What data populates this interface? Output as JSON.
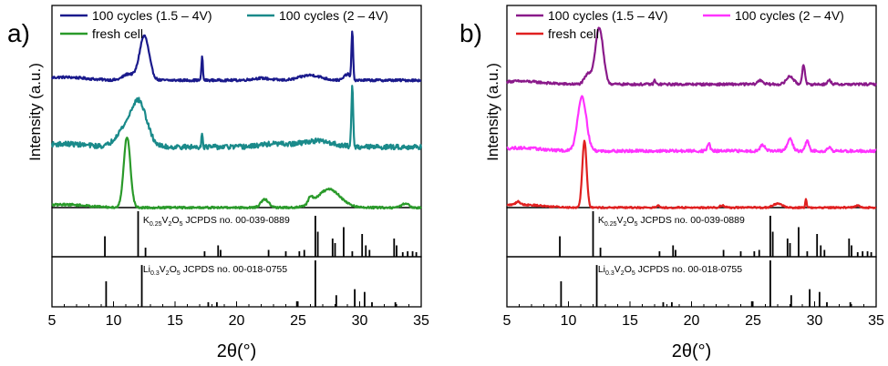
{
  "chart_data": [
    {
      "type": "line",
      "panel_label": "a)",
      "xlabel": "2θ(°)",
      "ylabel": "Intensity (a.u.)",
      "xlim": [
        5,
        35
      ],
      "x_ticks": [
        5,
        10,
        15,
        20,
        25,
        30,
        35
      ],
      "legend": {
        "position": "top",
        "entries": [
          {
            "name": "100 cycles (1.5 – 4V)",
            "color": "#1a1a8c"
          },
          {
            "name": "100 cycles (2 – 4V)",
            "color": "#1a8a8a"
          },
          {
            "name": "fresh cell",
            "color": "#2a9a2a"
          }
        ]
      },
      "series": [
        {
          "name": "100 cycles (1.5 – 4V)",
          "color": "#1a1a8c",
          "offset": 0.88,
          "base": 0.0,
          "noise": 0.006,
          "peaks": [
            [
              12.5,
              0.22,
              0.55
            ],
            [
              11.2,
              0.03,
              0.6
            ],
            [
              17.2,
              0.12,
              0.08
            ],
            [
              29.4,
              0.24,
              0.09
            ],
            [
              29.0,
              0.03,
              0.35
            ],
            [
              26.0,
              0.025,
              1.2
            ],
            [
              22.0,
              0.01,
              1.0
            ]
          ]
        },
        {
          "name": "100 cycles (2 – 4V)",
          "color": "#1a8a8a",
          "offset": 0.55,
          "base": 0.0,
          "noise": 0.012,
          "peaks": [
            [
              12.0,
              0.23,
              0.95
            ],
            [
              10.6,
              0.06,
              0.8
            ],
            [
              17.2,
              0.07,
              0.08
            ],
            [
              29.4,
              0.3,
              0.1
            ],
            [
              26.5,
              0.03,
              1.8
            ],
            [
              23.0,
              0.015,
              1.5
            ]
          ]
        },
        {
          "name": "fresh cell",
          "color": "#2a9a2a",
          "offset": 0.25,
          "base": 0.0,
          "noise": 0.005,
          "peaks": [
            [
              11.1,
              0.35,
              0.38
            ],
            [
              22.3,
              0.04,
              0.45
            ],
            [
              26.0,
              0.035,
              0.25
            ],
            [
              27.5,
              0.09,
              1.3
            ],
            [
              33.7,
              0.02,
              0.4
            ]
          ]
        }
      ],
      "references": [
        {
          "label_parts": [
            [
              "K",
              ""
            ],
            [
              "0.25",
              "sub"
            ],
            [
              "V",
              ""
            ],
            [
              "2",
              "sub"
            ],
            [
              "O",
              ""
            ],
            [
              "5",
              "sub"
            ],
            [
              " JCPDS no. 00-039-0889",
              ""
            ]
          ],
          "lines": [
            [
              9.3,
              0.45
            ],
            [
              12.0,
              1.0
            ],
            [
              12.6,
              0.2
            ],
            [
              17.4,
              0.12
            ],
            [
              18.5,
              0.25
            ],
            [
              18.7,
              0.15
            ],
            [
              22.6,
              0.15
            ],
            [
              24.0,
              0.12
            ],
            [
              25.1,
              0.12
            ],
            [
              25.5,
              0.15
            ],
            [
              26.4,
              0.9
            ],
            [
              26.6,
              0.55
            ],
            [
              27.8,
              0.4
            ],
            [
              28.0,
              0.3
            ],
            [
              28.7,
              0.65
            ],
            [
              29.4,
              0.12
            ],
            [
              30.2,
              0.5
            ],
            [
              30.5,
              0.25
            ],
            [
              30.8,
              0.15
            ],
            [
              32.8,
              0.4
            ],
            [
              33.0,
              0.25
            ],
            [
              33.5,
              0.1
            ],
            [
              33.9,
              0.12
            ],
            [
              34.3,
              0.12
            ],
            [
              34.6,
              0.1
            ]
          ]
        },
        {
          "label_parts": [
            [
              "Li",
              ""
            ],
            [
              "0.3",
              "sub"
            ],
            [
              "V",
              ""
            ],
            [
              "2",
              "sub"
            ],
            [
              "O",
              ""
            ],
            [
              "5",
              "sub"
            ],
            [
              " JCPDS no. 00-018-0755",
              ""
            ]
          ],
          "lines": [
            [
              9.4,
              0.55
            ],
            [
              12.3,
              0.9
            ],
            [
              17.7,
              0.1
            ],
            [
              18.4,
              0.1
            ],
            [
              24.9,
              0.12
            ],
            [
              26.4,
              1.0
            ],
            [
              28.1,
              0.25
            ],
            [
              29.6,
              0.38
            ],
            [
              30.4,
              0.32
            ],
            [
              31.0,
              0.1
            ],
            [
              32.9,
              0.1
            ]
          ]
        }
      ]
    },
    {
      "type": "line",
      "panel_label": "b)",
      "xlabel": "2θ(°)",
      "ylabel": "Intensity (a.u.)",
      "xlim": [
        5,
        35
      ],
      "x_ticks": [
        5,
        10,
        15,
        20,
        25,
        30,
        35
      ],
      "legend": {
        "position": "top",
        "entries": [
          {
            "name": "100 cycles (1.5 – 4V)",
            "color": "#8a1a8a"
          },
          {
            "name": "100 cycles (2 – 4V)",
            "color": "#ff33ff"
          },
          {
            "name": "fresh cell",
            "color": "#e02020"
          }
        ]
      },
      "series": [
        {
          "name": "100 cycles (1.5 – 4V)",
          "color": "#8a1a8a",
          "offset": 0.86,
          "base": 0.0,
          "noise": 0.006,
          "peaks": [
            [
              12.5,
              0.28,
              0.45
            ],
            [
              11.6,
              0.05,
              0.4
            ],
            [
              17.0,
              0.02,
              0.1
            ],
            [
              25.6,
              0.02,
              0.3
            ],
            [
              28.0,
              0.04,
              0.4
            ],
            [
              29.1,
              0.1,
              0.15
            ],
            [
              31.2,
              0.02,
              0.2
            ]
          ]
        },
        {
          "name": "100 cycles (2 – 4V)",
          "color": "#ff33ff",
          "offset": 0.53,
          "base": 0.0,
          "noise": 0.007,
          "peaks": [
            [
              11.1,
              0.27,
              0.5
            ],
            [
              21.4,
              0.04,
              0.15
            ],
            [
              25.8,
              0.03,
              0.3
            ],
            [
              28.0,
              0.06,
              0.3
            ],
            [
              29.4,
              0.05,
              0.2
            ],
            [
              31.2,
              0.02,
              0.2
            ]
          ]
        },
        {
          "name": "fresh cell",
          "color": "#e02020",
          "offset": 0.25,
          "base": 0.0,
          "noise": 0.004,
          "peaks": [
            [
              11.3,
              0.33,
              0.25
            ],
            [
              5.9,
              0.015,
              0.25
            ],
            [
              17.3,
              0.015,
              0.1
            ],
            [
              22.5,
              0.01,
              0.3
            ],
            [
              27.0,
              0.02,
              0.5
            ],
            [
              29.3,
              0.04,
              0.08
            ],
            [
              33.5,
              0.01,
              0.3
            ]
          ]
        }
      ],
      "references": [
        {
          "label_parts": [
            [
              "K",
              ""
            ],
            [
              "0.25",
              "sub"
            ],
            [
              "V",
              ""
            ],
            [
              "2",
              "sub"
            ],
            [
              "O",
              ""
            ],
            [
              "5",
              "sub"
            ],
            [
              " JCPDS no. 00-039-0889",
              ""
            ]
          ],
          "lines": [
            [
              9.3,
              0.45
            ],
            [
              12.0,
              1.0
            ],
            [
              12.6,
              0.2
            ],
            [
              17.4,
              0.12
            ],
            [
              18.5,
              0.25
            ],
            [
              18.7,
              0.15
            ],
            [
              22.6,
              0.15
            ],
            [
              24.0,
              0.12
            ],
            [
              25.1,
              0.12
            ],
            [
              25.5,
              0.15
            ],
            [
              26.4,
              0.9
            ],
            [
              26.6,
              0.55
            ],
            [
              27.8,
              0.4
            ],
            [
              28.0,
              0.3
            ],
            [
              28.7,
              0.65
            ],
            [
              29.4,
              0.12
            ],
            [
              30.2,
              0.5
            ],
            [
              30.5,
              0.25
            ],
            [
              30.8,
              0.15
            ],
            [
              32.8,
              0.4
            ],
            [
              33.0,
              0.25
            ],
            [
              33.5,
              0.1
            ],
            [
              33.9,
              0.12
            ],
            [
              34.3,
              0.12
            ],
            [
              34.6,
              0.1
            ]
          ]
        },
        {
          "label_parts": [
            [
              "Li",
              ""
            ],
            [
              "0.3",
              "sub"
            ],
            [
              "V",
              ""
            ],
            [
              "2",
              "sub"
            ],
            [
              "O",
              ""
            ],
            [
              "5",
              "sub"
            ],
            [
              " JCPDS no. 00-018-0755",
              ""
            ]
          ],
          "lines": [
            [
              9.4,
              0.55
            ],
            [
              12.3,
              0.9
            ],
            [
              17.7,
              0.1
            ],
            [
              18.4,
              0.1
            ],
            [
              24.9,
              0.12
            ],
            [
              26.4,
              1.0
            ],
            [
              28.1,
              0.25
            ],
            [
              29.6,
              0.38
            ],
            [
              30.4,
              0.32
            ],
            [
              31.0,
              0.1
            ],
            [
              32.9,
              0.1
            ]
          ]
        }
      ]
    }
  ]
}
